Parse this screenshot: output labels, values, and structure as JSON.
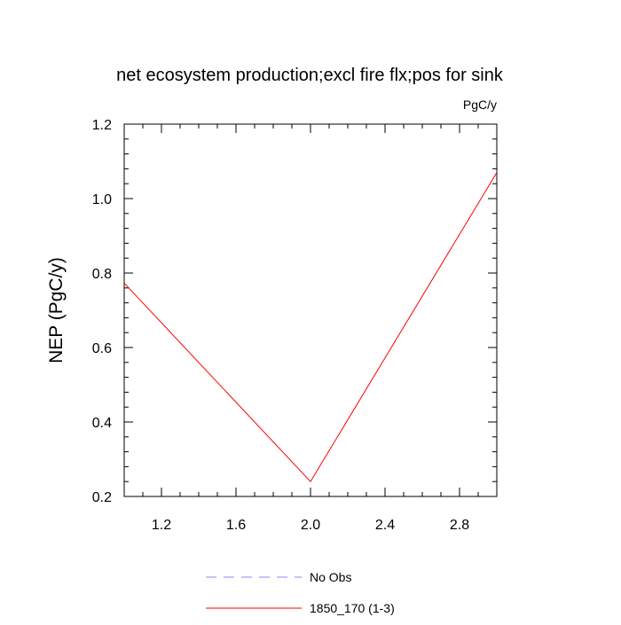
{
  "chart_data": {
    "type": "line",
    "title": "net ecosystem production;excl fire flx;pos for sink",
    "units_label": "PgC/y",
    "xlabel": "",
    "ylabel": "NEP  (PgC/y)",
    "xlim": [
      1.0,
      3.0
    ],
    "ylim": [
      0.2,
      1.2
    ],
    "xticks": [
      1.2,
      1.6,
      2.0,
      2.4,
      2.8
    ],
    "xtick_labels": [
      "1.2",
      "1.6",
      "2.0",
      "2.4",
      "2.8"
    ],
    "yticks": [
      0.2,
      0.4,
      0.6,
      0.8,
      1.0,
      1.2
    ],
    "ytick_labels": [
      "0.2",
      "0.4",
      "0.6",
      "0.8",
      "1.0",
      "1.2"
    ],
    "grid": false,
    "legend_position": "bottom",
    "series": [
      {
        "name": "1850_170 (1-3)",
        "color": "#ff0000",
        "style": "solid",
        "x": [
          1.0,
          2.0,
          3.0
        ],
        "y": [
          0.773,
          0.24,
          1.07
        ]
      }
    ],
    "legend": [
      {
        "label": "No Obs",
        "color": "#8888ee",
        "style": "dashed"
      },
      {
        "label": "1850_170 (1-3)",
        "color": "#ff0000",
        "style": "solid"
      }
    ]
  }
}
